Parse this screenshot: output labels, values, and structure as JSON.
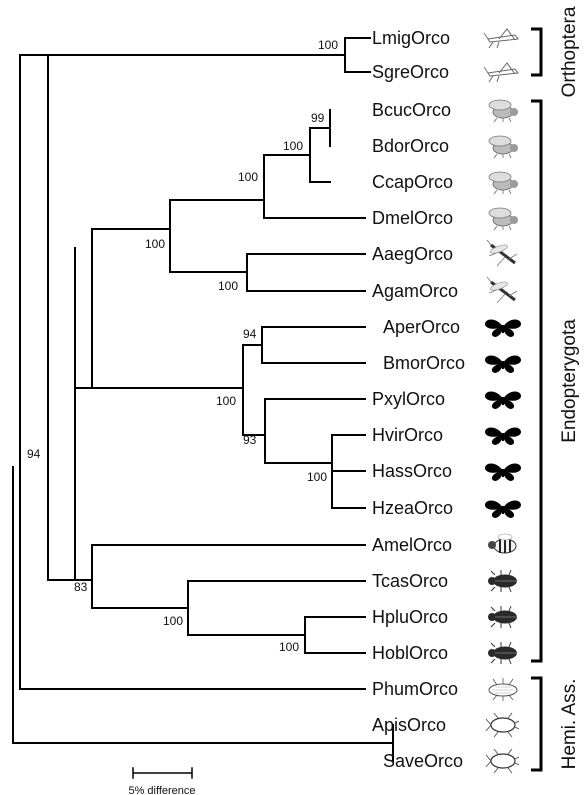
{
  "taxa": [
    {
      "label": "LmigOrco",
      "icon": "grasshopper-icon"
    },
    {
      "label": "SgreOrco",
      "icon": "grasshopper-icon"
    },
    {
      "label": "BcucOrco",
      "icon": "fly-icon"
    },
    {
      "label": "BdorOrco",
      "icon": "fly-icon"
    },
    {
      "label": "CcapOrco",
      "icon": "fly-icon"
    },
    {
      "label": "DmelOrco",
      "icon": "fly-icon"
    },
    {
      "label": "AaegOrco",
      "icon": "mosquito-icon"
    },
    {
      "label": "AgamOrco",
      "icon": "mosquito-icon"
    },
    {
      "label": "AperOrco",
      "icon": "butterfly-icon"
    },
    {
      "label": "BmorOrco",
      "icon": "butterfly-icon"
    },
    {
      "label": "PxylOrco",
      "icon": "butterfly-icon"
    },
    {
      "label": "HvirOrco",
      "icon": "butterfly-icon"
    },
    {
      "label": "HassOrco",
      "icon": "butterfly-icon"
    },
    {
      "label": "HzeaOrco",
      "icon": "butterfly-icon"
    },
    {
      "label": "AmelOrco",
      "icon": "bee-icon"
    },
    {
      "label": "TcasOrco",
      "icon": "beetle-icon"
    },
    {
      "label": "HpluOrco",
      "icon": "beetle-icon"
    },
    {
      "label": "HoblOrco",
      "icon": "beetle-icon"
    },
    {
      "label": "PhumOrco",
      "icon": "louse-icon"
    },
    {
      "label": "ApisOrco",
      "icon": "aphid-icon"
    },
    {
      "label": "SaveOrco",
      "icon": "aphid-icon"
    }
  ],
  "groups": [
    {
      "label": "Orthoptera",
      "from": 0,
      "to": 1
    },
    {
      "label": "Endopterygota",
      "from": 2,
      "to": 17
    },
    {
      "label": "Hemi. Ass.",
      "from": 18,
      "to": 20
    }
  ],
  "support_values": [
    "100",
    "99",
    "100",
    "100",
    "100",
    "100",
    "94",
    "100",
    "93",
    "100",
    "94",
    "83",
    "100",
    "100"
  ],
  "scale_bar": {
    "label": "5% difference",
    "value": 0.05
  },
  "colors": {
    "line": "#000000",
    "text": "#111111",
    "butterfly": "#000000",
    "beetle": "#2a2a2a",
    "fly": "#9a9a9a"
  }
}
